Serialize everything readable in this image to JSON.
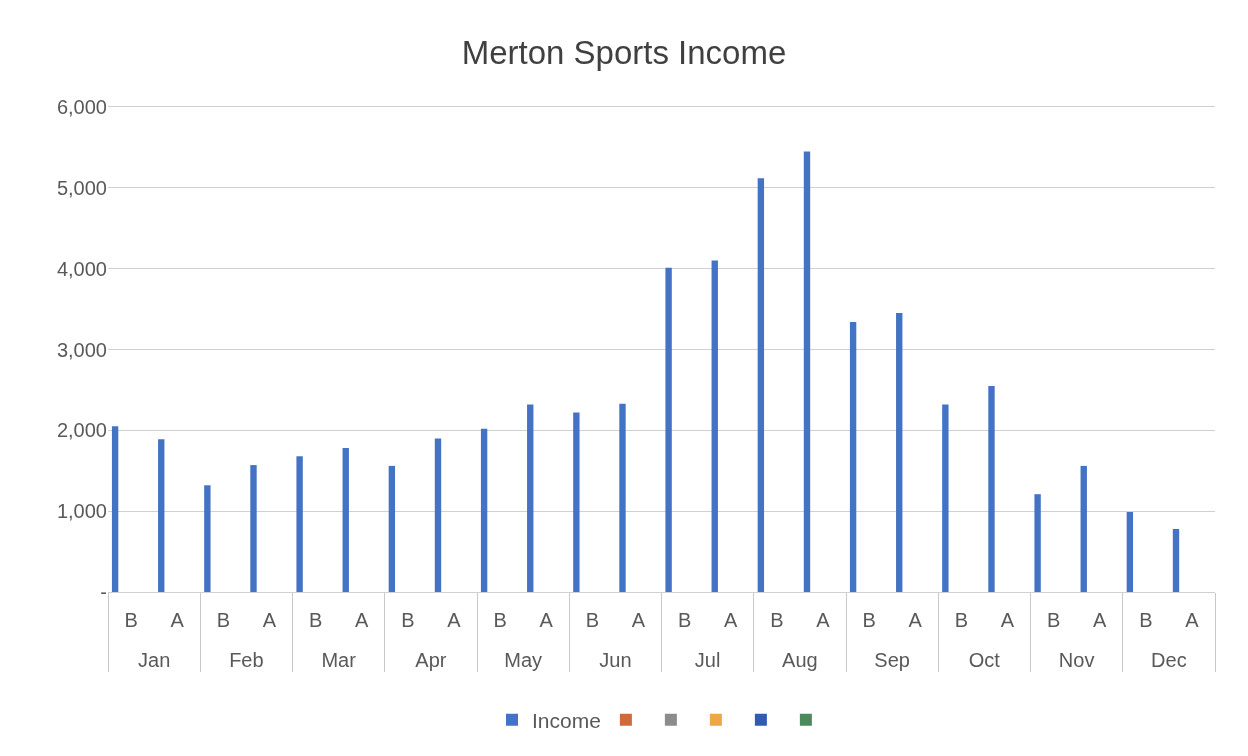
{
  "chart_data": {
    "type": "bar",
    "title": "Merton Sports Income",
    "categories": [
      "B",
      "A",
      "B",
      "A",
      "B",
      "A",
      "B",
      "A",
      "B",
      "A",
      "B",
      "A",
      "B",
      "A",
      "B",
      "A",
      "B",
      "A",
      "B",
      "A",
      "B",
      "A",
      "B",
      "A"
    ],
    "annotations": [
      "Jan",
      "Feb",
      "Mar",
      "Apr",
      "May",
      "Jun",
      "Jul",
      "Aug",
      "Sep",
      "Oct",
      "Nov",
      "Dec"
    ],
    "series": [
      {
        "name": "Income",
        "color": "#4472c4",
        "values": [
          2050,
          1890,
          1320,
          1570,
          1680,
          1780,
          1560,
          1900,
          2020,
          2320,
          2220,
          2330,
          4010,
          4100,
          5120,
          5450,
          3340,
          3450,
          2320,
          2550,
          1210,
          1560,
          990,
          780
        ]
      },
      {
        "color": "#d0693c",
        "values": [
          null,
          null,
          null,
          null,
          null,
          null,
          null,
          null,
          null,
          null,
          null,
          null,
          null,
          null,
          null,
          null,
          null,
          null,
          null,
          null,
          null,
          null,
          null,
          null
        ]
      },
      {
        "color": "#8c8c8c",
        "values": [
          null,
          null,
          null,
          null,
          null,
          null,
          null,
          null,
          null,
          null,
          null,
          null,
          null,
          null,
          null,
          null,
          null,
          null,
          null,
          null,
          null,
          null,
          null,
          null
        ]
      },
      {
        "color": "#eba844",
        "values": [
          null,
          null,
          null,
          null,
          null,
          null,
          null,
          null,
          null,
          null,
          null,
          null,
          null,
          null,
          null,
          null,
          null,
          null,
          null,
          null,
          null,
          null,
          null,
          null
        ]
      },
      {
        "color": "#2f5cb0",
        "values": [
          null,
          null,
          null,
          null,
          null,
          null,
          null,
          null,
          null,
          null,
          null,
          null,
          null,
          null,
          null,
          null,
          null,
          null,
          null,
          null,
          null,
          null,
          null,
          null
        ]
      },
      {
        "color": "#4a8a5c",
        "values": [
          null,
          null,
          null,
          null,
          null,
          null,
          null,
          null,
          null,
          null,
          null,
          null,
          null,
          null,
          null,
          null,
          null,
          null,
          null,
          null,
          null,
          null,
          null,
          null
        ]
      }
    ],
    "ylim": [
      0,
      6000
    ],
    "yticks": [
      {
        "value": 0,
        "label": "-"
      },
      {
        "value": 1000,
        "label": "1,000"
      },
      {
        "value": 2000,
        "label": "2,000"
      },
      {
        "value": 3000,
        "label": "3,000"
      },
      {
        "value": 4000,
        "label": "4,000"
      },
      {
        "value": 5000,
        "label": "5,000"
      },
      {
        "value": 6000,
        "label": "6,000"
      }
    ],
    "grid": "y",
    "legend": "bottom"
  }
}
